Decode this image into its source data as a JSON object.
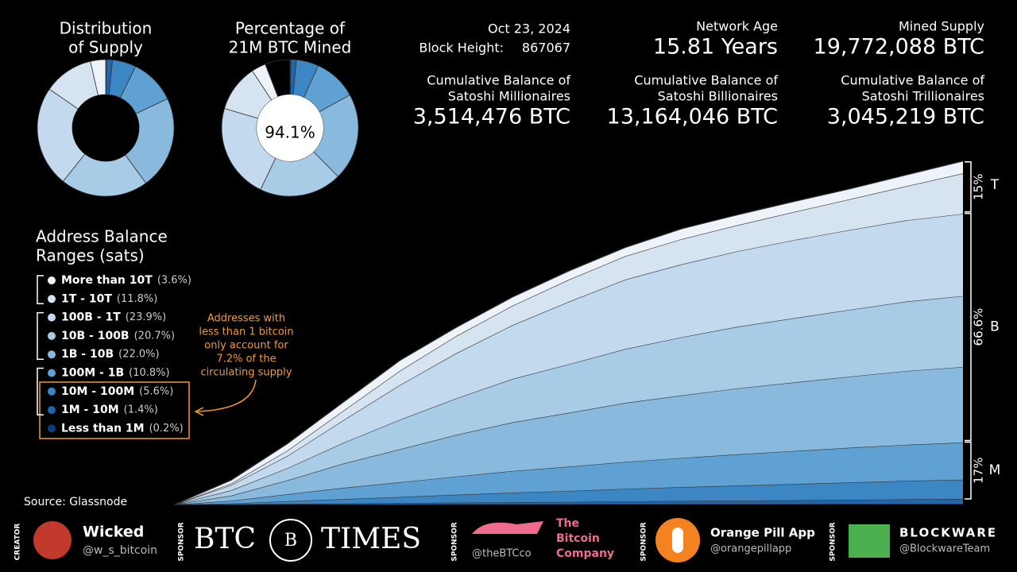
{
  "chart_data": [
    {
      "type": "donut",
      "title": [
        "Distribution",
        "of Supply"
      ],
      "legend_title": [
        "Address Balance",
        "Ranges (sats)"
      ],
      "categories": [
        "More than 10T",
        "1T - 10T",
        "100B - 1T",
        "10B - 100B",
        "1B - 10B",
        "100M - 1B",
        "10M - 100M",
        "1M - 10M",
        "Less than 1M"
      ],
      "values": [
        3.6,
        11.8,
        23.9,
        20.7,
        22.0,
        10.8,
        5.6,
        1.4,
        0.2
      ],
      "value_labels": [
        "(3.6%)",
        "(11.8%)",
        "(23.9%)",
        "(20.7%)",
        "(22.0%)",
        "(10.8%)",
        "(5.6%)",
        "(1.4%)",
        "(0.2%)"
      ],
      "colors": [
        "#eef3fa",
        "#d6e4f2",
        "#c3d9ee",
        "#a8cbe6",
        "#8ab9de",
        "#5fa1d2",
        "#3d86c4",
        "#2166ac",
        "#0b3f80"
      ]
    },
    {
      "type": "donut",
      "title": [
        "Percentage of",
        "21M BTC Mined"
      ],
      "values": [
        3.4,
        11.1,
        22.5,
        19.5,
        20.6,
        10.2,
        5.3,
        1.3,
        0.2
      ],
      "colors": [
        "#eef3fa",
        "#d6e4f2",
        "#c3d9ee",
        "#a8cbe6",
        "#8ab9de",
        "#5fa1d2",
        "#3d86c4",
        "#2166ac",
        "#0b3f80"
      ],
      "center": {
        "value": 94.1,
        "label": "94.1%"
      },
      "unmined_color": "#000000"
    },
    {
      "type": "area",
      "categories": [
        null,
        null,
        null,
        null,
        null,
        null,
        null,
        null,
        null,
        null,
        null,
        null,
        null,
        null,
        null
      ],
      "ylim": [
        0,
        20.5
      ],
      "series": [
        {
          "color": "#0b3f80",
          "values": [
            0,
            0,
            0.01,
            0.01,
            0.01,
            0.02,
            0.02,
            0.02,
            0.03,
            0.03,
            0.03,
            0.03,
            0.04,
            0.04,
            0.04
          ]
        },
        {
          "color": "#2166ac",
          "values": [
            0,
            0.01,
            0.03,
            0.05,
            0.07,
            0.09,
            0.11,
            0.13,
            0.15,
            0.17,
            0.19,
            0.21,
            0.23,
            0.26,
            0.28
          ]
        },
        {
          "color": "#3d86c4",
          "values": [
            0,
            0.05,
            0.15,
            0.25,
            0.35,
            0.45,
            0.55,
            0.63,
            0.72,
            0.8,
            0.87,
            0.94,
            1.0,
            1.06,
            1.11
          ]
        },
        {
          "color": "#5fa1d2",
          "values": [
            0,
            0.15,
            0.4,
            0.65,
            0.85,
            1.05,
            1.25,
            1.4,
            1.55,
            1.68,
            1.8,
            1.9,
            2.0,
            2.08,
            2.14
          ]
        },
        {
          "color": "#8ab9de",
          "values": [
            0,
            0.3,
            0.8,
            1.4,
            1.9,
            2.4,
            2.8,
            3.1,
            3.4,
            3.6,
            3.8,
            3.95,
            4.1,
            4.25,
            4.35
          ]
        },
        {
          "color": "#a8cbe6",
          "values": [
            0,
            0.3,
            0.7,
            1.2,
            1.7,
            2.1,
            2.5,
            2.8,
            3.1,
            3.35,
            3.55,
            3.7,
            3.85,
            4.0,
            4.09
          ]
        },
        {
          "color": "#c3d9ee",
          "values": [
            0,
            0.3,
            0.7,
            1.3,
            2.0,
            2.6,
            3.1,
            3.6,
            4.0,
            4.2,
            4.35,
            4.5,
            4.6,
            4.68,
            4.73
          ]
        },
        {
          "color": "#d6e4f2",
          "values": [
            0,
            0.09,
            0.31,
            0.55,
            0.82,
            0.99,
            1.12,
            1.27,
            1.35,
            1.45,
            1.5,
            1.62,
            1.77,
            1.97,
            2.33
          ]
        },
        {
          "color": "#eef3fa",
          "values": [
            0,
            0.2,
            0.4,
            0.5,
            0.6,
            0.5,
            0.5,
            0.5,
            0.5,
            0.6,
            0.6,
            0.6,
            0.6,
            0.65,
            0.71
          ]
        }
      ],
      "brackets": [
        {
          "letter": "T",
          "share": {
            "value": 15,
            "label": "15%"
          }
        },
        {
          "letter": "B",
          "share": {
            "value": 66.6,
            "label": "66.6%"
          }
        },
        {
          "letter": "M",
          "share": {
            "value": 17,
            "label": "17%"
          }
        }
      ]
    }
  ],
  "stats": {
    "date": "Oct 23, 2024",
    "block_label": "Block Height:",
    "block": "867067",
    "age_label": "Network Age",
    "age": "15.81 Years",
    "mined_label": "Mined Supply",
    "mined": "19,772,088 BTC",
    "millionaires": {
      "label": [
        "Cumulative Balance of",
        "Satoshi Millionaires"
      ],
      "value": "3,514,476 BTC"
    },
    "billionaires": {
      "label": [
        "Cumulative Balance of",
        "Satoshi Billionaires"
      ],
      "value": "13,164,046 BTC"
    },
    "trillionaires": {
      "label": [
        "Cumulative Balance of",
        "Satoshi Trillionaires"
      ],
      "value": "3,045,219 BTC"
    }
  },
  "annotation": [
    "Addresses with",
    "less than 1 bitcoin",
    "only account for",
    "7.2% of the",
    "circulating supply"
  ],
  "source": "Source: Glassnode",
  "footer": {
    "creator_tag": "CREATOR",
    "creator": "Wicked",
    "creator_handle": "@w_s_bitcoin",
    "sponsor_tag": "SPONSOR",
    "btc_times": [
      "BTC",
      "TIMES"
    ],
    "btc_co": [
      "The",
      "Bitcoin",
      "Company"
    ],
    "btc_co_handle": "@theBTCco",
    "opa": "Orange Pill App",
    "opa_handle": "@orangepillapp",
    "blockware": "BLOCKWARE",
    "blockware_handle": "@BlockwareTeam"
  }
}
